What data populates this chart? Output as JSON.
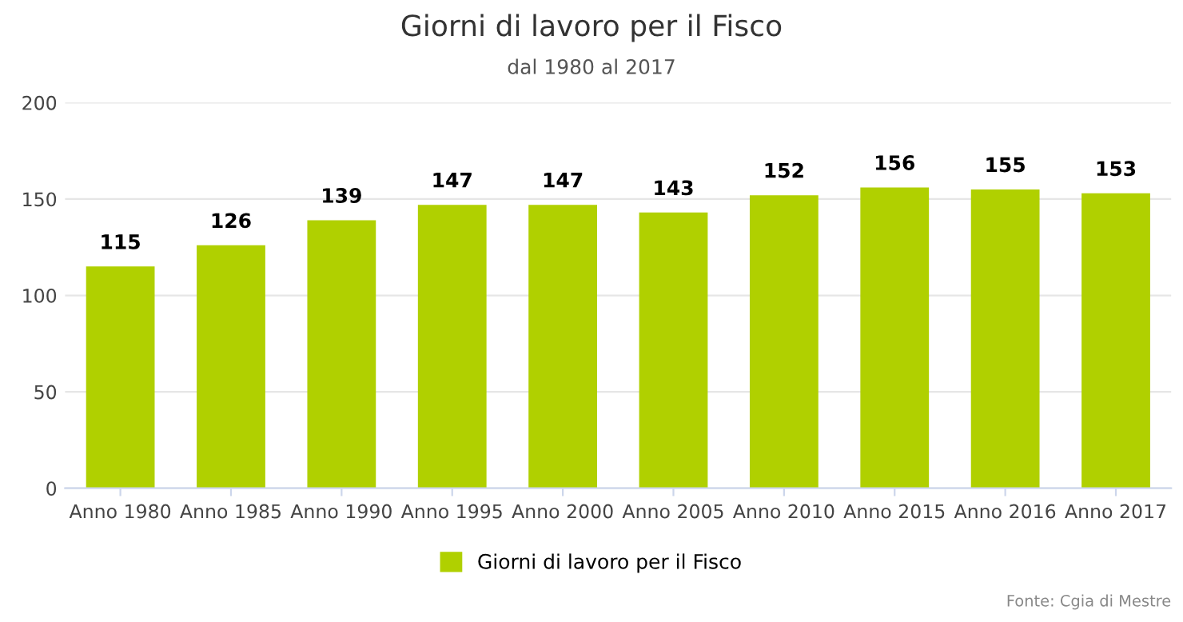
{
  "chart_data": {
    "type": "bar",
    "title": "Giorni di lavoro per il Fisco",
    "subtitle": "dal 1980 al 2017",
    "categories": [
      "Anno 1980",
      "Anno 1985",
      "Anno 1990",
      "Anno 1995",
      "Anno 2000",
      "Anno 2005",
      "Anno 2010",
      "Anno 2015",
      "Anno 2016",
      "Anno 2017"
    ],
    "series": [
      {
        "name": "Giorni di lavoro per il Fisco",
        "color": "#b0d000",
        "values": [
          115,
          126,
          139,
          147,
          147,
          143,
          152,
          156,
          155,
          153
        ]
      }
    ],
    "ylim": [
      0,
      200
    ],
    "yticks": [
      0,
      50,
      100,
      150,
      200
    ],
    "grid": "y",
    "legend": "bottom",
    "data_labels": true,
    "annotations": [
      "Fonte: Cgia di Mestre"
    ]
  }
}
